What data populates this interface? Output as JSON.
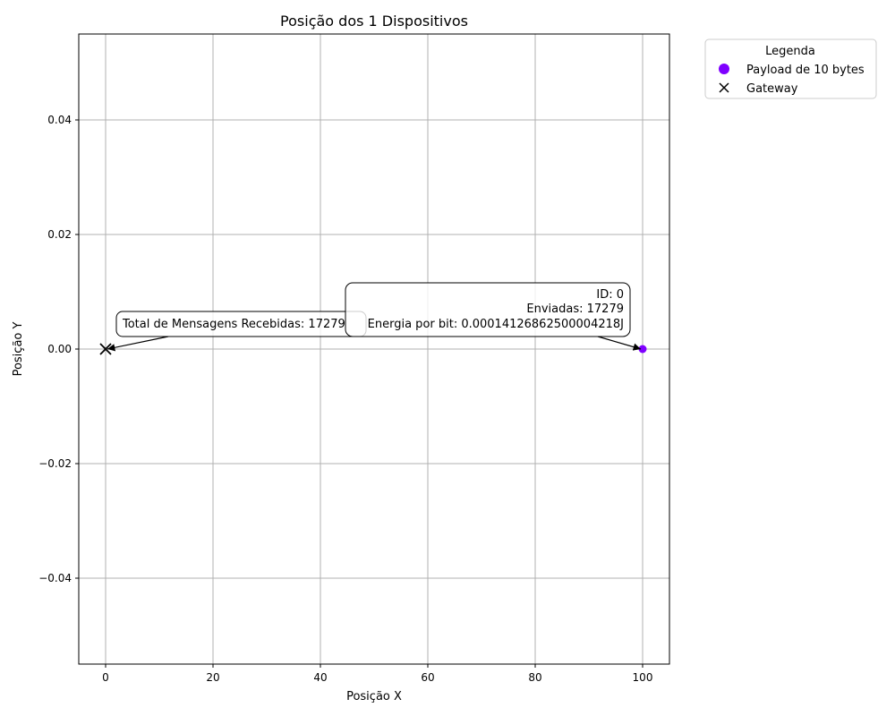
{
  "chart_data": {
    "type": "scatter",
    "title": "Posição dos 1 Dispositivos",
    "xlabel": "Posição X",
    "ylabel": "Posição Y",
    "xlim": [
      -5,
      105
    ],
    "ylim": [
      -0.055,
      0.055
    ],
    "xticks": [
      0,
      20,
      40,
      60,
      80,
      100
    ],
    "xtick_labels": [
      "0",
      "20",
      "40",
      "60",
      "80",
      "100"
    ],
    "yticks": [
      -0.04,
      -0.02,
      0.0,
      0.02,
      0.04
    ],
    "ytick_labels": [
      "−0.04",
      "−0.02",
      "0.00",
      "0.02",
      "0.04"
    ],
    "grid": true,
    "legend": {
      "title": "Legenda",
      "placement": "outside-top-right",
      "entries": [
        {
          "label": "Payload de 10 bytes",
          "marker": "circle",
          "color": "#7f00ff"
        },
        {
          "label": "Gateway",
          "marker": "x",
          "color": "#000000"
        }
      ]
    },
    "series": [
      {
        "name": "Payload de 10 bytes",
        "marker": "circle",
        "color": "#7f00ff",
        "points": [
          {
            "x": 100,
            "y": 0
          }
        ]
      },
      {
        "name": "Gateway",
        "marker": "x",
        "color": "#000000",
        "points": [
          {
            "x": 0,
            "y": 0
          }
        ]
      }
    ],
    "annotations": [
      {
        "target": "gateway",
        "lines": [
          "Total de Mensagens Recebidas: 17279"
        ]
      },
      {
        "target": "device-0",
        "lines": [
          "ID: 0",
          "Enviadas: 17279",
          "Energia por bit: 0.00014126862500004218J"
        ]
      }
    ]
  }
}
